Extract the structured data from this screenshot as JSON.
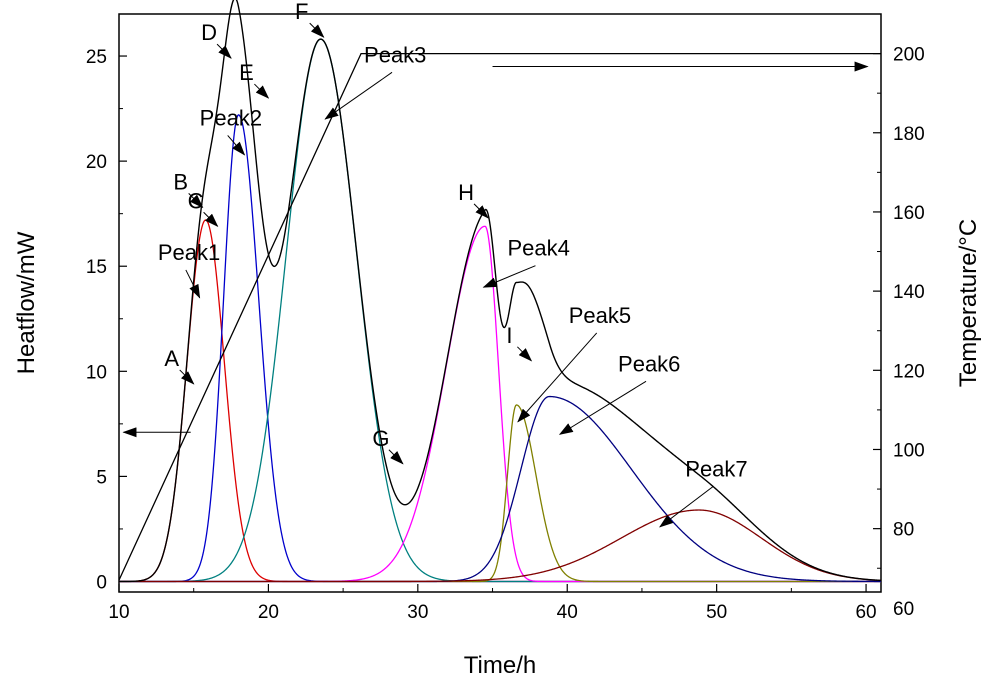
{
  "chart_data": {
    "type": "line",
    "xlabel": "Time/h",
    "ylabel": "Heatflow/mW",
    "y2label": "Temperature/°C",
    "xlim": [
      10,
      61
    ],
    "ylim": [
      -0.5,
      27
    ],
    "y2lim": [
      64,
      210
    ],
    "x_ticks": [
      10,
      20,
      30,
      40,
      50,
      60
    ],
    "y_ticks": [
      0,
      5,
      10,
      15,
      20,
      25
    ],
    "y2_ticks": [
      60,
      80,
      100,
      120,
      140,
      160,
      180,
      200
    ],
    "grid": false,
    "colors": {
      "total": "#000000",
      "peak1": "#dd0000",
      "peak2": "#0000cc",
      "peak3": "#008080",
      "peak4": "#ff00ff",
      "peak5": "#808000",
      "peak6": "#000080",
      "peak7": "#800000",
      "temperature": "#000000"
    },
    "peaks": [
      {
        "name": "Peak1",
        "color": "peak1",
        "amp": 17.2,
        "center": 15.8,
        "left": 1.25,
        "right": 1.25
      },
      {
        "name": "Peak2",
        "color": "peak2",
        "amp": 22.2,
        "center": 18.0,
        "left": 1.0,
        "right": 1.35
      },
      {
        "name": "Peak3",
        "color": "peak3",
        "amp": 25.8,
        "center": 23.5,
        "left": 2.3,
        "right": 2.4
      },
      {
        "name": "Peak4",
        "color": "peak4",
        "amp": 16.9,
        "center": 34.5,
        "left": 2.6,
        "right": 0.9
      },
      {
        "name": "Peak5",
        "color": "peak5",
        "amp": 8.4,
        "center": 36.6,
        "left": 0.6,
        "right": 1.3
      },
      {
        "name": "Peak6",
        "color": "peak6",
        "amp": 8.8,
        "center": 38.8,
        "left": 1.9,
        "right": 5.5
      },
      {
        "name": "Peak7",
        "color": "peak7",
        "amp": 3.4,
        "center": 48.8,
        "left": 5.2,
        "right": 4.2
      }
    ],
    "temperature_series": {
      "x": [
        10,
        26.2,
        61
      ],
      "y": [
        67,
        200,
        200
      ]
    },
    "point_labels": [
      {
        "text": "A",
        "x": 15.0,
        "y": 9.4
      },
      {
        "text": "B",
        "x": 15.6,
        "y": 17.8
      },
      {
        "text": "C",
        "x": 16.6,
        "y": 16.9
      },
      {
        "text": "D",
        "x": 17.5,
        "y": 24.9
      },
      {
        "text": "E",
        "x": 20.0,
        "y": 23.0
      },
      {
        "text": "F",
        "x": 23.7,
        "y": 25.9
      },
      {
        "text": "G",
        "x": 29.0,
        "y": 5.6
      },
      {
        "text": "H",
        "x": 34.7,
        "y": 17.3
      },
      {
        "text": "I",
        "x": 37.6,
        "y": 10.5
      }
    ],
    "peak_labels": [
      {
        "text": "Peak1",
        "tx": 12.6,
        "ty": 15.3,
        "x": 15.4,
        "y": 13.5
      },
      {
        "text": "Peak2",
        "tx": 15.4,
        "ty": 21.7,
        "x": 18.4,
        "y": 20.3
      },
      {
        "text": "Peak3",
        "tx": 26.4,
        "ty": 24.7,
        "x": 23.8,
        "y": 22.0
      },
      {
        "text": "Peak4",
        "tx": 36.0,
        "ty": 15.5,
        "x": 34.4,
        "y": 14.0
      },
      {
        "text": "Peak5",
        "tx": 40.1,
        "ty": 12.3,
        "x": 36.7,
        "y": 7.6
      },
      {
        "text": "Peak6",
        "tx": 43.4,
        "ty": 10.0,
        "x": 39.5,
        "y": 7.0
      },
      {
        "text": "Peak7",
        "tx": 47.9,
        "ty": 5.0,
        "x": 46.2,
        "y": 2.6
      }
    ],
    "axis_arrows": [
      {
        "from": [
          14.8,
          7.1
        ],
        "to": [
          10.3,
          7.1
        ]
      },
      {
        "from": [
          35.0,
          24.5
        ],
        "to": [
          60.1,
          24.5
        ]
      }
    ]
  }
}
